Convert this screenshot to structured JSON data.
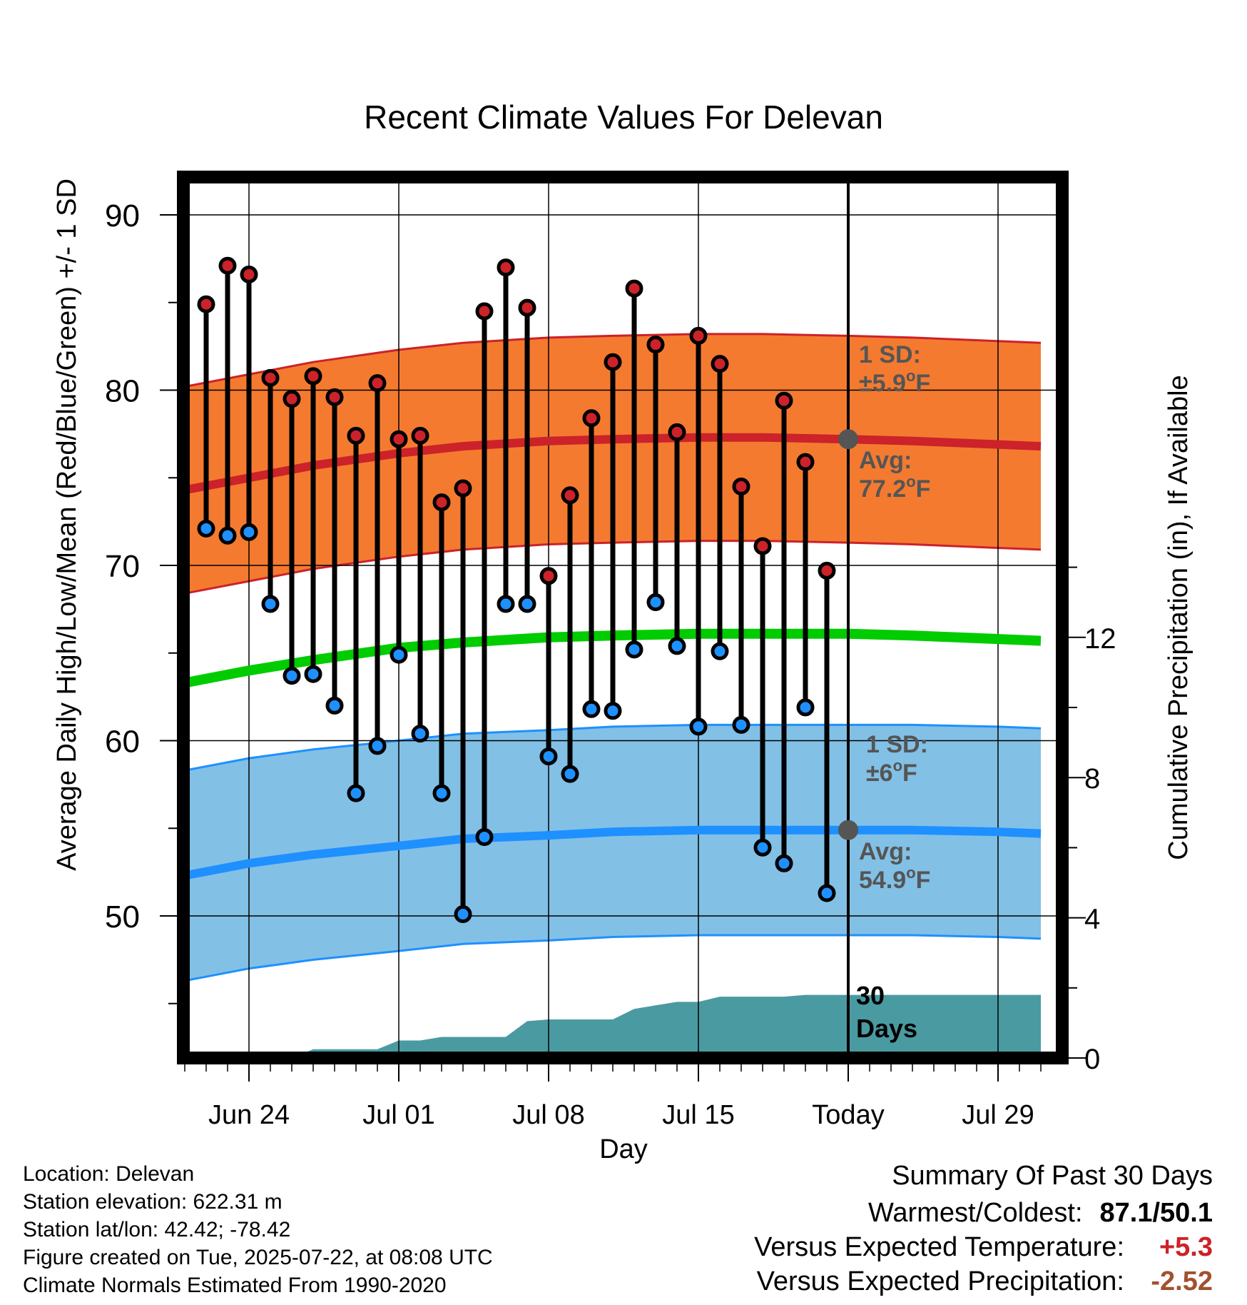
{
  "chart_data": {
    "type": "line",
    "title": "Recent Climate Values For Delevan",
    "xlabel": "Day",
    "ylabel": "Average Daily High/Low/Mean (Red/Blue/Green) +/- 1 SD",
    "y2label": "Cumulative Precipitation (in), If Available",
    "ylim": [
      42,
      93
    ],
    "y2lim": [
      0,
      24
    ],
    "xlim": [
      -3.3,
      37.3
    ],
    "x_tick_positions": [
      0,
      7,
      14,
      21,
      28,
      35
    ],
    "x_tick_labels": [
      "Jun 24",
      "Jul 01",
      "Jul 08",
      "Jul 15",
      "Today",
      "Jul 29"
    ],
    "y_ticks": [
      50,
      60,
      70,
      80,
      90
    ],
    "y2_ticks": [
      0,
      4,
      8,
      12
    ],
    "today_index": 28,
    "grid": true,
    "colors": {
      "high": "#cc2229",
      "low": "#1e90ff",
      "mean": "#00cc00",
      "high_band": "#f47a30",
      "low_band": "#82c0e6",
      "precip": "#4a9aa2",
      "marker": "#555555",
      "positive": "#cc2229",
      "negative": "#a0522d"
    },
    "observations": {
      "x": [
        -2,
        -1,
        0,
        1,
        2,
        3,
        4,
        5,
        6,
        7,
        8,
        9,
        10,
        11,
        12,
        13,
        14,
        15,
        16,
        17,
        18,
        19,
        20,
        21,
        22,
        23,
        24,
        25,
        26,
        27
      ],
      "high": [
        84.9,
        87.1,
        86.6,
        80.7,
        79.5,
        80.8,
        79.6,
        77.4,
        80.4,
        77.2,
        77.4,
        73.6,
        74.4,
        84.5,
        87.0,
        84.7,
        69.4,
        74.0,
        78.4,
        81.6,
        85.8,
        82.6,
        77.6,
        83.1,
        81.5,
        74.5,
        71.1,
        79.4,
        75.9,
        69.7
      ],
      "low": [
        72.1,
        71.7,
        71.9,
        67.8,
        63.7,
        63.8,
        62.0,
        57.0,
        59.7,
        64.9,
        60.4,
        57.0,
        50.1,
        54.5,
        67.8,
        67.8,
        59.1,
        58.1,
        61.8,
        61.7,
        65.2,
        67.9,
        65.4,
        60.8,
        65.1,
        60.9,
        53.9,
        53.0,
        61.9,
        51.3
      ]
    },
    "normals": {
      "x": [
        -3,
        0,
        3,
        7,
        10,
        14,
        17,
        21,
        24,
        28,
        31,
        35,
        37
      ],
      "high_avg": [
        74.3,
        75.0,
        75.7,
        76.4,
        76.8,
        77.1,
        77.2,
        77.3,
        77.3,
        77.2,
        77.1,
        76.9,
        76.8
      ],
      "high_sd": 5.9,
      "low_avg": [
        52.3,
        53.0,
        53.5,
        54.0,
        54.4,
        54.6,
        54.8,
        54.9,
        54.9,
        54.9,
        54.9,
        54.8,
        54.7
      ],
      "low_sd": 6.0,
      "mean_avg": [
        63.3,
        64.0,
        64.6,
        65.3,
        65.6,
        65.9,
        66.0,
        66.1,
        66.1,
        66.1,
        66.0,
        65.8,
        65.7
      ]
    },
    "precipitation": {
      "x": [
        -3,
        0,
        2,
        3,
        5,
        6,
        7,
        8,
        9,
        10,
        11,
        12,
        13,
        14,
        15,
        16,
        17,
        18,
        19,
        20,
        21,
        22,
        23,
        24,
        25,
        26,
        27,
        28,
        37
      ],
      "cumulative": [
        0.0,
        0.0,
        0.0,
        0.25,
        0.25,
        0.25,
        0.5,
        0.5,
        0.6,
        0.6,
        0.6,
        0.6,
        1.05,
        1.1,
        1.1,
        1.1,
        1.1,
        1.4,
        1.5,
        1.6,
        1.6,
        1.75,
        1.75,
        1.75,
        1.75,
        1.8,
        1.8,
        1.8,
        1.8
      ]
    },
    "annotations": {
      "high_sd_label": "1 SD:",
      "high_sd_value": "±5.9",
      "high_avg_label": "Avg:",
      "high_avg_value": "77.2",
      "low_sd_label": "1 SD:",
      "low_sd_value": "±6",
      "low_avg_label": "Avg:",
      "low_avg_value": "54.9",
      "degree_symbol": "o",
      "unit": "F",
      "days_count": "30",
      "days_label": "Days"
    }
  },
  "footer": {
    "location": "Location: Delevan",
    "elevation": "Station elevation: 622.31 m",
    "latlon": "Station lat/lon: 42.42; -78.42",
    "created": "Figure created on Tue, 2025-07-22, at 08:08 UTC",
    "normals": "Climate Normals Estimated From 1990-2020"
  },
  "summary": {
    "title": "Summary Of Past 30 Days",
    "warmest_coldest_label": "Warmest/Coldest:",
    "warmest_coldest_value": "87.1/50.1",
    "temp_label": "Versus Expected Temperature:",
    "temp_value": "+5.3",
    "precip_label": "Versus Expected Precipitation:",
    "precip_value": "-2.52"
  }
}
